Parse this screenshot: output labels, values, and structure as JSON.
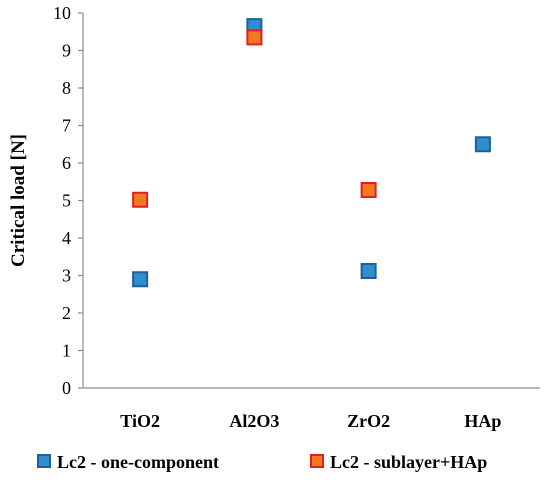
{
  "chart_data": {
    "type": "scatter",
    "categories": [
      "TiO2",
      "Al2O3",
      "ZrO2",
      "HAp"
    ],
    "ylabel": "Critical load [N]",
    "ylim": [
      0,
      10
    ],
    "yticks": [
      0,
      1,
      2,
      3,
      4,
      5,
      6,
      7,
      8,
      9,
      10
    ],
    "grid": false,
    "legend_position": "bottom",
    "series": [
      {
        "name": "Lc2 - one-component",
        "color": "#2E8FD0",
        "edge_color": "#1F5F9A",
        "values": [
          2.9,
          9.65,
          3.12,
          6.5
        ]
      },
      {
        "name": "Lc2 - sublayer+HAp",
        "color": "#F07A20",
        "edge_color": "#E41E1E",
        "values": [
          5.02,
          9.35,
          5.28,
          null
        ]
      }
    ]
  }
}
